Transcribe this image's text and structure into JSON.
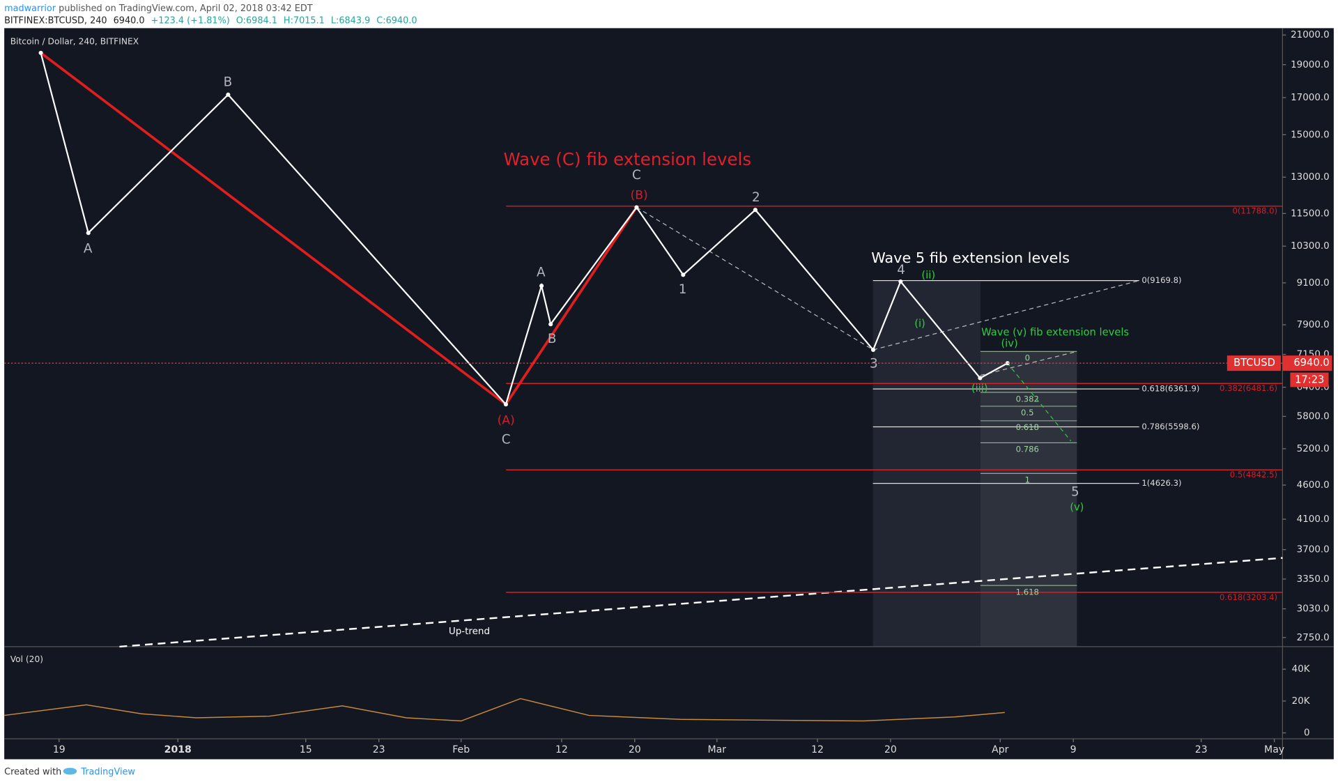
{
  "header": {
    "author": "madwarrior",
    "published": "published on TradingView.com, April 02, 2018 03:42 EDT",
    "symbol": "BITFINEX:BTCUSD, 240",
    "last": "6940.0",
    "change": "+123.4 (+1.81%)",
    "open": "O:6984.1",
    "high": "H:7015.1",
    "low": "L:6843.9",
    "close": "C:6940.0"
  },
  "chart_data": [
    {
      "type": "line",
      "title": "Bitcoin / Dollar, 240, BITFINEX",
      "log_scale": true,
      "color": "#ffffff",
      "x": [
        -15,
        -9.8,
        5.5,
        35.9,
        39.8,
        40.8,
        50.2,
        55.3,
        63.2,
        76.1,
        79.1,
        87.8,
        90.8
      ],
      "values": [
        19770,
        10770,
        17170,
        6040,
        9010,
        7915,
        11740,
        9350,
        11640,
        7260,
        9140,
        6600,
        6940
      ],
      "xlim": [
        -19,
        120.9
      ],
      "xticks": [
        {
          "value": -13,
          "label": "19"
        },
        {
          "value": 0,
          "label": "2018"
        },
        {
          "value": 14,
          "label": "15"
        },
        {
          "value": 22,
          "label": "23"
        },
        {
          "value": 31,
          "label": "Feb"
        },
        {
          "value": 42,
          "label": "12"
        },
        {
          "value": 50,
          "label": "20"
        },
        {
          "value": 59,
          "label": "Mar"
        },
        {
          "value": 70,
          "label": "12"
        },
        {
          "value": 78,
          "label": "20"
        },
        {
          "value": 90,
          "label": "Apr"
        },
        {
          "value": 98,
          "label": "9"
        },
        {
          "value": 112,
          "label": "23"
        },
        {
          "value": 120,
          "label": "May"
        }
      ],
      "ylim": [
        2667,
        21490
      ],
      "yticks": [
        {
          "value": 21000,
          "label": "21000.0"
        },
        {
          "value": 19000,
          "label": "19000.0"
        },
        {
          "value": 17000,
          "label": "17000.0"
        },
        {
          "value": 15000,
          "label": "15000.0"
        },
        {
          "value": 13000,
          "label": "13000.0"
        },
        {
          "value": 11500,
          "label": "11500.0"
        },
        {
          "value": 10300,
          "label": "10300.0"
        },
        {
          "value": 9100,
          "label": "9100.0"
        },
        {
          "value": 7900,
          "label": "7900.0"
        },
        {
          "value": 7150,
          "label": "7150.0"
        },
        {
          "value": 6400,
          "label": "6400.0"
        },
        {
          "value": 5800,
          "label": "5800.0"
        },
        {
          "value": 5200,
          "label": "5200.0"
        },
        {
          "value": 4600,
          "label": "4600.0"
        },
        {
          "value": 4100,
          "label": "4100.0"
        },
        {
          "value": 3700,
          "label": "3700.0"
        },
        {
          "value": 3350,
          "label": "3350.0"
        },
        {
          "value": 3030,
          "label": "3030.0"
        },
        {
          "value": 2750,
          "label": "2750.0"
        }
      ],
      "fib_c": [
        {
          "value": 11788,
          "label": "0(11788.0)"
        },
        {
          "value": 6481.6,
          "label": "0.382(6481.6)"
        },
        {
          "value": 4842.5,
          "label": "0.5(4842.5)"
        },
        {
          "value": 3203.4,
          "label": "0.618(3203.4)"
        }
      ],
      "fib_5": [
        {
          "value": 9169.8,
          "label": "0(9169.8)"
        },
        {
          "value": 6361.9,
          "label": "0.618(6361.9)"
        },
        {
          "value": 5598.6,
          "label": "0.786(5598.6)"
        },
        {
          "value": 4626.3,
          "label": "1(4626.3)"
        }
      ],
      "fib_v": [
        0,
        0.382,
        0.5,
        0.618,
        0.786,
        1,
        1.618
      ],
      "price_marker": {
        "value": 6940,
        "label": "6940.0"
      },
      "symbol_tag": "BTCUSD",
      "countdown": "17:23",
      "annotations": [
        "A",
        "B",
        "C",
        "(A)",
        "A",
        "B",
        "C",
        "(B)",
        "1",
        "2",
        "3",
        "4",
        "5",
        "(i)",
        "(ii)",
        "(iii)",
        "(iv)",
        "(v)",
        "Up-trend",
        "Wave (C) fib extension levels",
        "Wave 5 fib extension levels",
        "Wave (v) fib extension levels"
      ]
    },
    {
      "type": "line",
      "title": "Vol (20)",
      "color": "#c98a3a",
      "x": [
        -19,
        -10,
        -4,
        2,
        10,
        18,
        25,
        31,
        37.5,
        45,
        55,
        65,
        75,
        85,
        90.5
      ],
      "values": [
        11000,
        17600,
        12000,
        9500,
        10500,
        17000,
        9500,
        7500,
        21500,
        11000,
        8500,
        8000,
        7500,
        10000,
        12800
      ],
      "ylim": [
        -3700,
        52000
      ],
      "yticks": [
        0,
        {
          "value": 20000,
          "label": "20K"
        },
        {
          "value": 40000,
          "label": "40K"
        }
      ]
    }
  ],
  "footer": {
    "created": "Created with",
    "brand": "TradingView"
  }
}
